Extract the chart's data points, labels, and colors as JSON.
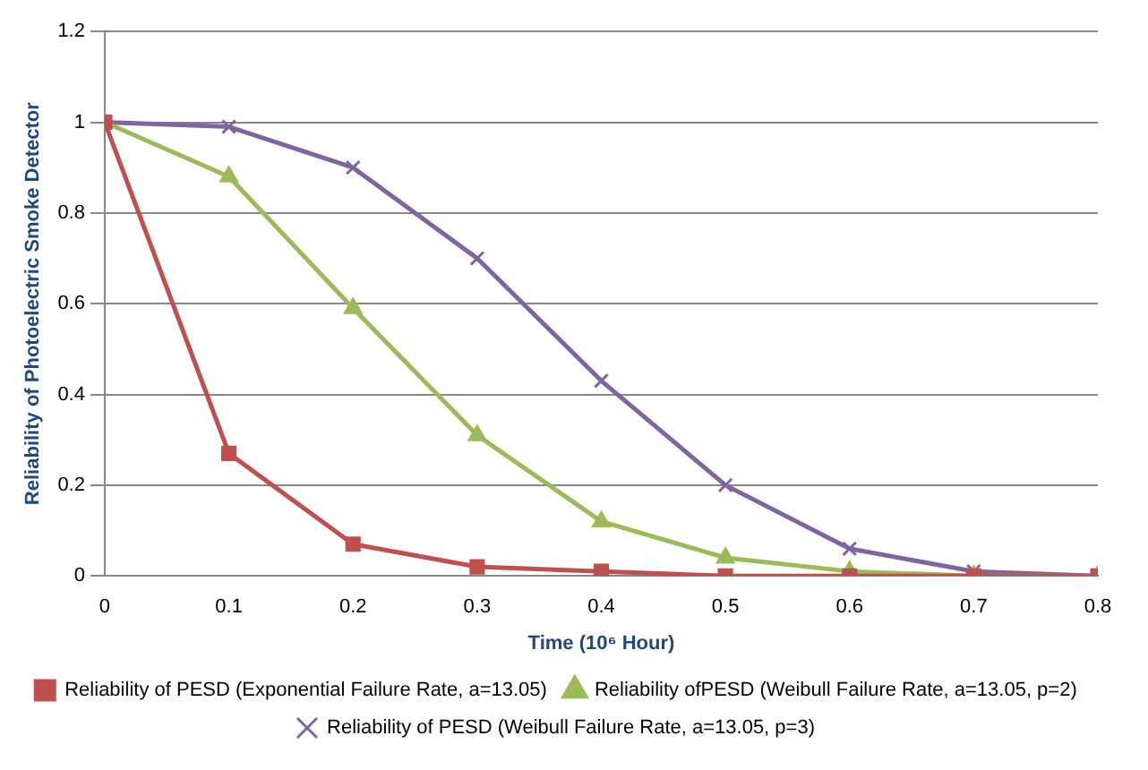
{
  "chart_data": {
    "type": "line",
    "xlabel": "Time (10⁶ Hour)",
    "ylabel": "Reliability of Photoelectric Smoke Detector",
    "x": [
      0,
      0.1,
      0.2,
      0.3,
      0.4,
      0.5,
      0.6,
      0.7,
      0.8
    ],
    "xlim": [
      0,
      0.8
    ],
    "xticks": [
      0,
      0.1,
      0.2,
      0.3,
      0.4,
      0.5,
      0.6,
      0.7,
      0.8
    ],
    "ylim": [
      0,
      1.2
    ],
    "yticks": [
      0,
      0.2,
      0.4,
      0.6,
      0.8,
      1,
      1.2
    ],
    "grid": "y",
    "legend": "bottom",
    "series": [
      {
        "name": "Reliability of PESD (Exponential Failure Rate, a=13.05)",
        "color": "#c0504d",
        "marker": "square",
        "values": [
          1,
          0.27,
          0.07,
          0.02,
          0.01,
          0,
          0,
          0,
          0
        ]
      },
      {
        "name": "Reliability ofPESD (Weibull Failure Rate, a=13.05, p=2)",
        "color": "#9bbb59",
        "marker": "triangle",
        "values": [
          1,
          0.88,
          0.59,
          0.31,
          0.12,
          0.04,
          0.01,
          0,
          0
        ]
      },
      {
        "name": "Reliability of PESD (Weibull Failure Rate, a=13.05, p=3)",
        "color": "#8064a2",
        "marker": "cross",
        "values": [
          1,
          0.99,
          0.9,
          0.7,
          0.43,
          0.2,
          0.06,
          0.01,
          0
        ]
      }
    ]
  }
}
